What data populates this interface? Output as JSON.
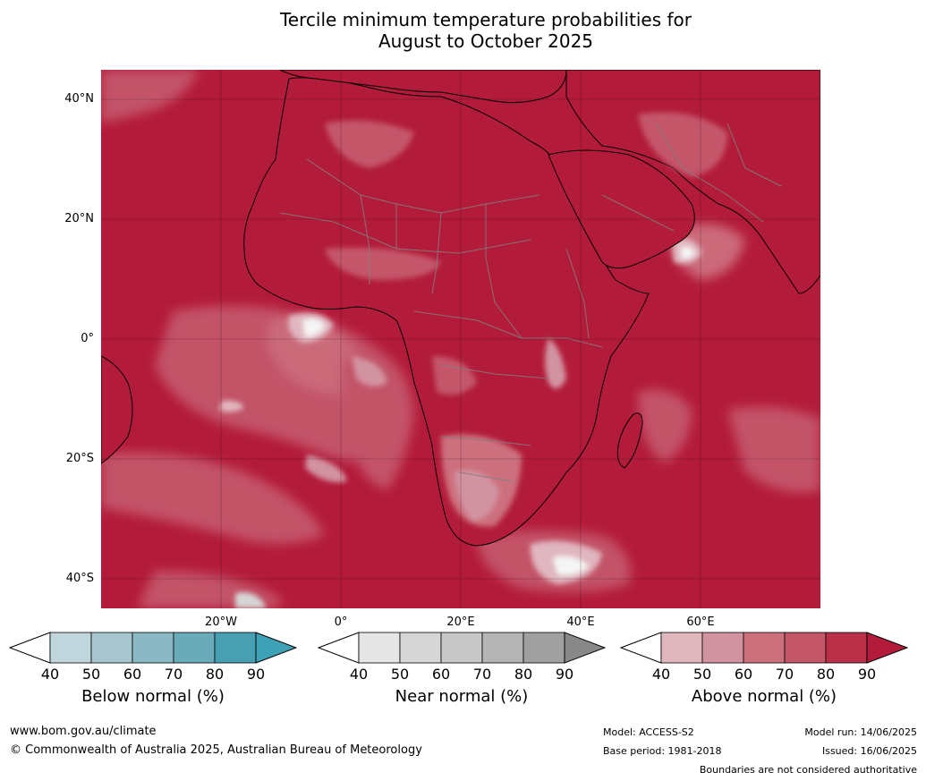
{
  "title_line1": "Tercile minimum temperature probabilities for",
  "title_line2": "August to October 2025",
  "map": {
    "lat_labels": [
      "40°N",
      "20°N",
      "0°",
      "20°S",
      "40°S"
    ],
    "lon_labels": [
      "20°W",
      "0°",
      "20°E",
      "40°E",
      "60°E"
    ],
    "colors": {
      "ocean_base": "#b31b3b",
      "land_base": "#b21c3a",
      "light_pink": "#e0b6bf",
      "pink_50": "#d293a0",
      "pink_60": "#cd707e",
      "pink_70": "#c4566a",
      "pink_80": "#b93047",
      "near_white": "#f5f5f5",
      "grey": "#d6d6d6"
    }
  },
  "legend": [
    {
      "label": "Below normal (%)",
      "ticks": [
        "40",
        "50",
        "60",
        "70",
        "80",
        "90"
      ],
      "colors": [
        "#c0d6dd",
        "#a8c6cd",
        "#8bb8c3",
        "#6aabba",
        "#47a0b2"
      ],
      "extend_color": "#3ea1b5"
    },
    {
      "label": "Near normal (%)",
      "ticks": [
        "40",
        "50",
        "60",
        "70",
        "80",
        "90"
      ],
      "colors": [
        "#e6e6e6",
        "#d6d6d6",
        "#c8c8c8",
        "#b4b4b4",
        "#a0a0a0"
      ],
      "extend_color": "#888888"
    },
    {
      "label": "Above normal (%)",
      "ticks": [
        "40",
        "50",
        "60",
        "70",
        "80",
        "90"
      ],
      "colors": [
        "#e0b6bf",
        "#d293a0",
        "#cd707e",
        "#c4566a",
        "#b93047"
      ],
      "extend_color": "#b21c3a"
    }
  ],
  "footer": {
    "url": "www.bom.gov.au/climate",
    "copyright": "© Commonwealth of Australia 2025, Australian Bureau of Meteorology",
    "model": "Model: ACCESS-S2",
    "base_period": "Base period: 1981-2018",
    "model_run": "Model run: 14/06/2025",
    "issued": "Issued: 16/06/2025",
    "disclaimer": "Boundaries are not considered authoritative"
  }
}
